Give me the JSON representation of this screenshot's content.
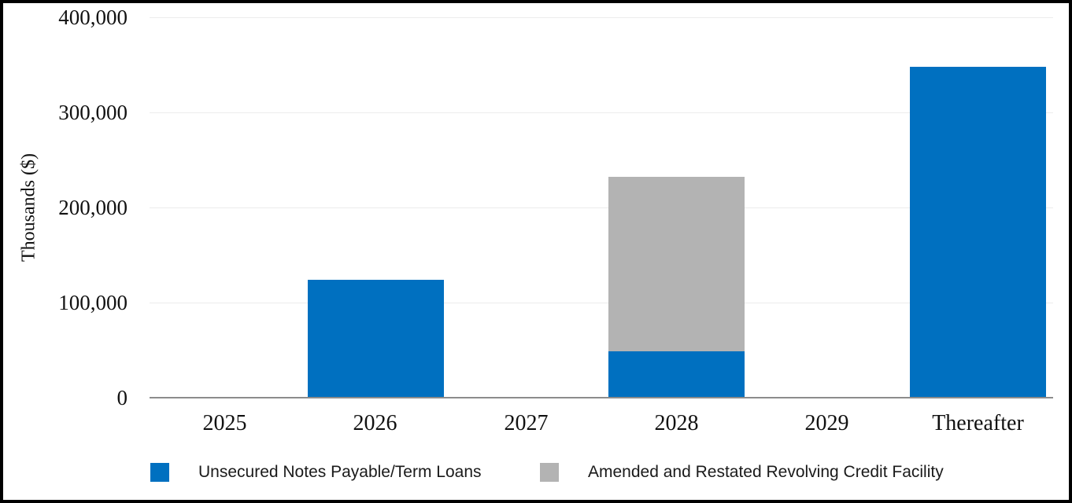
{
  "chart_data": {
    "type": "bar",
    "stacked": true,
    "title": "",
    "xlabel": "",
    "ylabel": "Thousands ($)",
    "categories": [
      "2025",
      "2026",
      "2027",
      "2028",
      "2029",
      "Thereafter"
    ],
    "series": [
      {
        "name": "Unsecured Notes Payable/Term Loans",
        "color": "#0070C0",
        "values": [
          0,
          124000,
          0,
          48500,
          0,
          348000
        ]
      },
      {
        "name": "Amended and Restated Revolving Credit Facility",
        "color": "#B3B3B3",
        "values": [
          0,
          0,
          0,
          183500,
          0,
          0
        ]
      }
    ],
    "y_ticks": [
      0,
      100000,
      200000,
      300000,
      400000
    ],
    "ylim": [
      0,
      400000
    ],
    "grid": true,
    "legend_position": "bottom",
    "colors": {
      "gridline": "#ececec",
      "axis_line": "#8c8c8c",
      "frame_border": "#000000",
      "text": "#111111"
    }
  }
}
